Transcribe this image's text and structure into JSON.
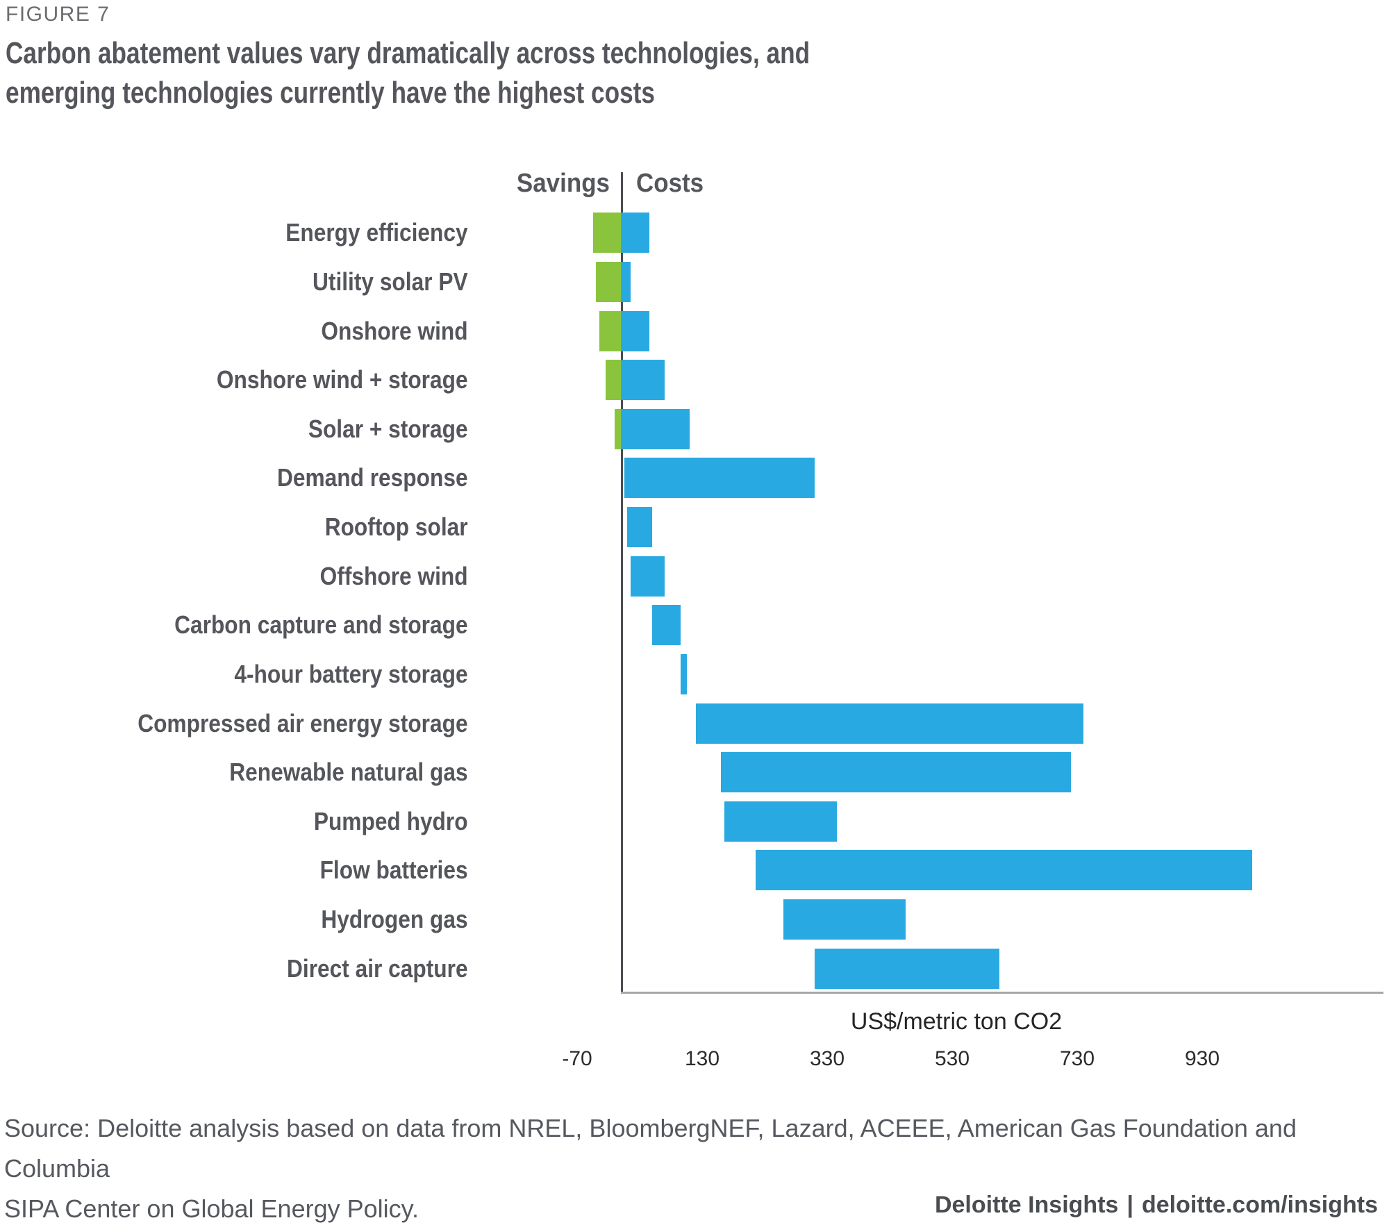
{
  "figure_label": "FIGURE 7",
  "title_line1": "Carbon abatement values vary dramatically across technologies, and",
  "title_line2": "emerging technologies currently have the highest costs",
  "chart_data": {
    "type": "bar",
    "orientation": "horizontal-range",
    "column_headers": {
      "savings": "Savings",
      "costs": "Costs"
    },
    "xlabel": "US$/metric ton CO2",
    "x_ticks": [
      -70,
      130,
      330,
      530,
      730,
      930
    ],
    "x_render_range": [
      -215.6,
      1217.8
    ],
    "zero_divider_value": 0,
    "grid": false,
    "legend": "none",
    "colors": {
      "savings_green": "#8AC43C",
      "costs_blue": "#29A9E1"
    },
    "units": "US$/metric ton CO2",
    "items": [
      {
        "label": "Energy efficiency",
        "min": -45,
        "max": 45
      },
      {
        "label": "Utility solar PV",
        "min": -40,
        "max": 15
      },
      {
        "label": "Onshore wind",
        "min": -35,
        "max": 45
      },
      {
        "label": "Onshore wind + storage",
        "min": -25,
        "max": 70
      },
      {
        "label": "Solar + storage",
        "min": -10,
        "max": 110
      },
      {
        "label": "Demand response",
        "min": 5,
        "max": 310
      },
      {
        "label": "Rooftop solar",
        "min": 10,
        "max": 50
      },
      {
        "label": "Offshore wind",
        "min": 15,
        "max": 70
      },
      {
        "label": "Carbon capture and storage",
        "min": 50,
        "max": 95
      },
      {
        "label": "4-hour battery storage",
        "min": 95,
        "max": 105
      },
      {
        "label": "Compressed air energy storage",
        "min": 120,
        "max": 740
      },
      {
        "label": "Renewable natural gas",
        "min": 160,
        "max": 720
      },
      {
        "label": "Pumped hydro",
        "min": 165,
        "max": 345
      },
      {
        "label": "Flow batteries",
        "min": 215,
        "max": 1010
      },
      {
        "label": "Hydrogen gas",
        "min": 260,
        "max": 455
      },
      {
        "label": "Direct air capture",
        "min": 310,
        "max": 605
      }
    ]
  },
  "source_line1": "Source: Deloitte analysis based on data from NREL, BloombergNEF, Lazard, ACEEE, American Gas Foundation and Columbia",
  "source_line2": "SIPA Center on Global Energy Policy.",
  "footer": {
    "brand": "Deloitte Insights",
    "separator": "|",
    "link": "deloitte.com/insights"
  }
}
